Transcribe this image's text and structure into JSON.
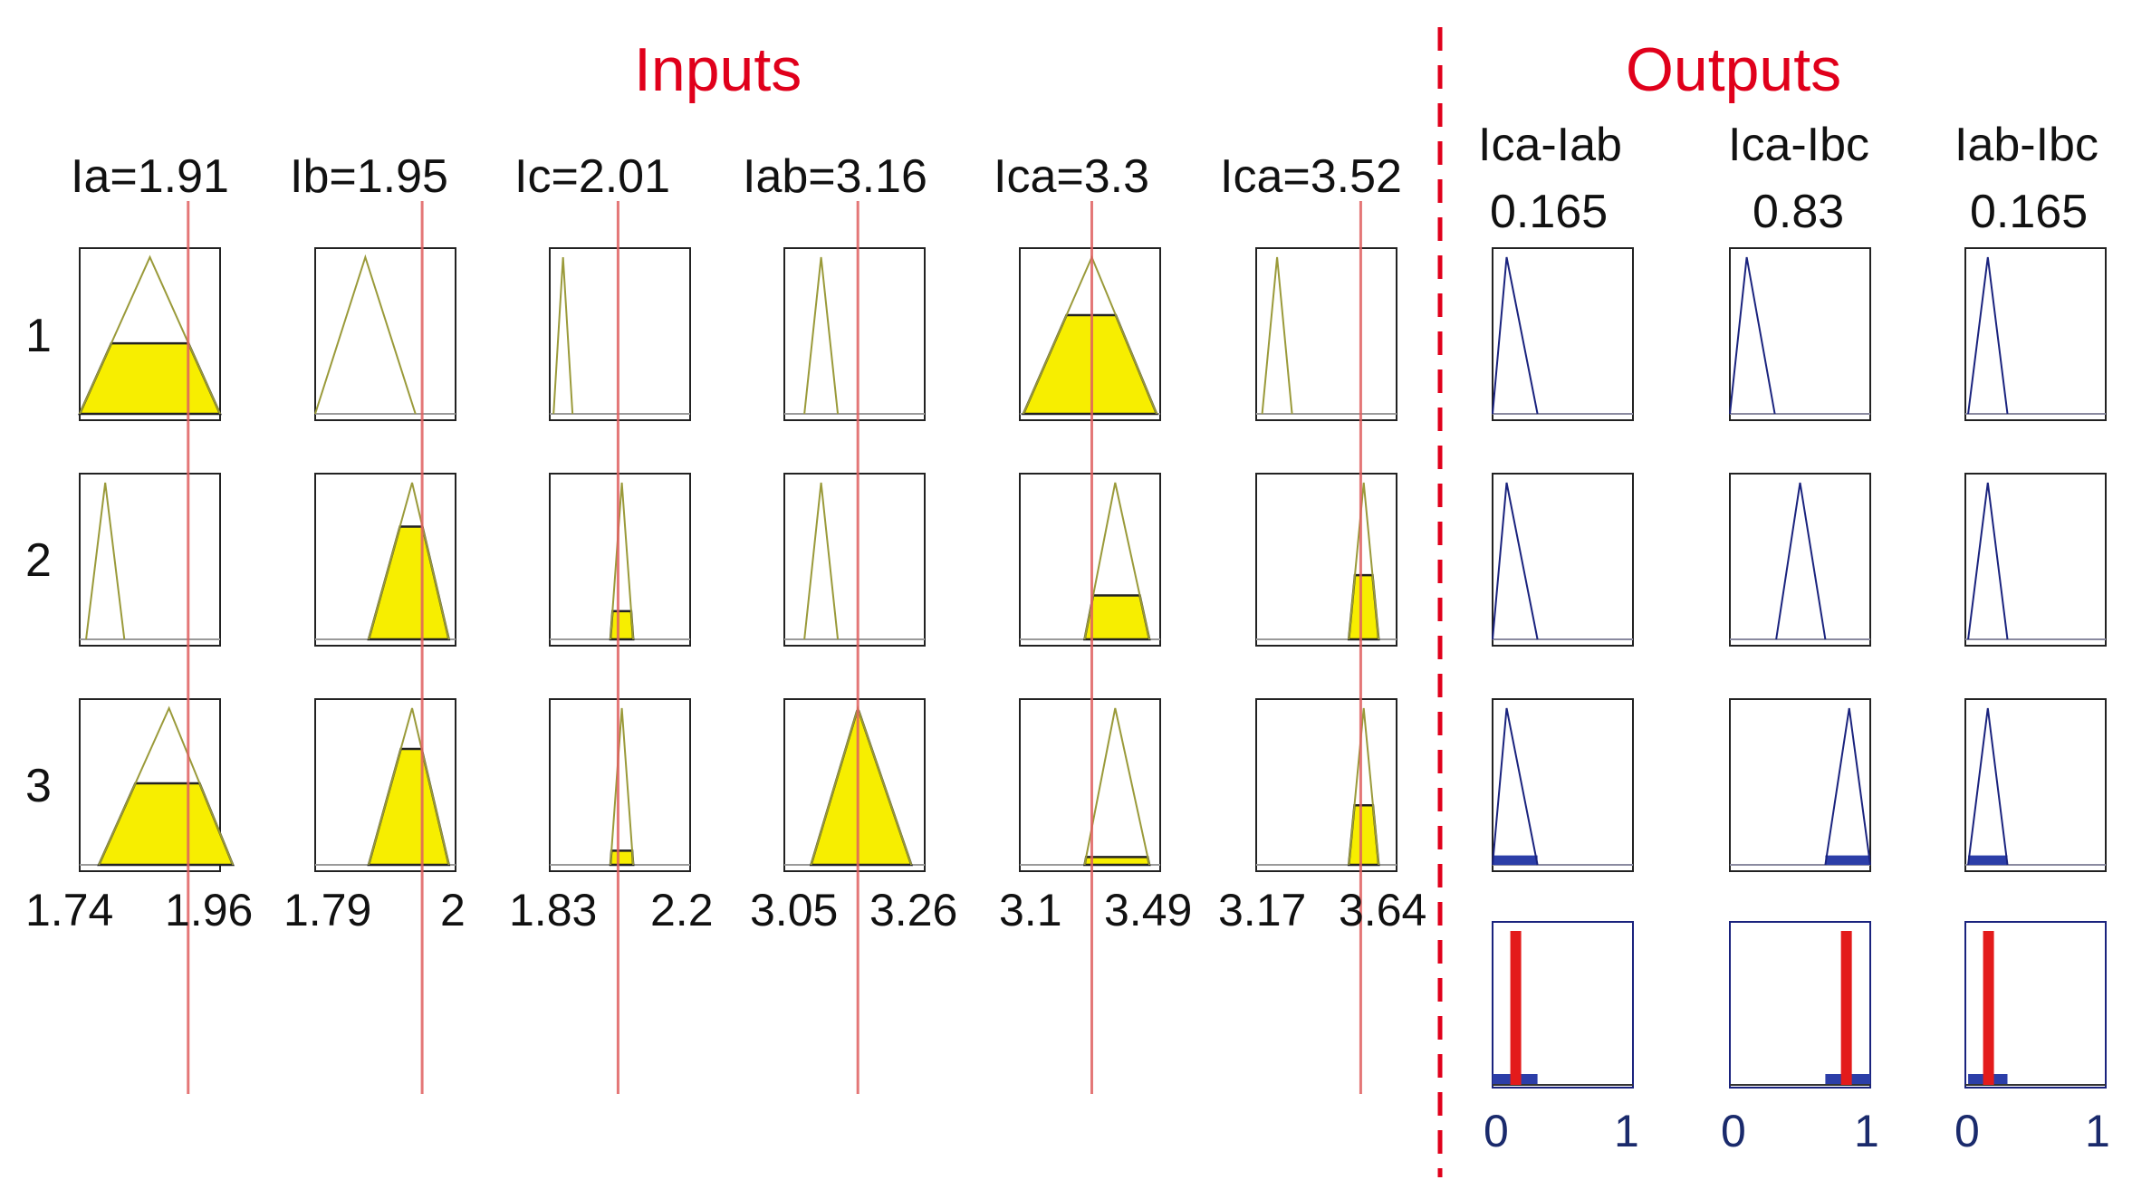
{
  "headings": {
    "inputs": "Inputs",
    "outputs": "Outputs"
  },
  "row_labels": [
    "1",
    "2",
    "3"
  ],
  "inputs": [
    {
      "label": "Ia=1.91",
      "range_min": "1.74",
      "range_max": "1.96",
      "value": 1.91,
      "min": 1.74,
      "max": 1.96,
      "mfs": [
        {
          "type": "trimf",
          "a": 1.74,
          "b": 1.85,
          "c": 1.96,
          "firing": 0.45
        },
        {
          "type": "trimf",
          "a": 1.75,
          "b": 1.78,
          "c": 1.81,
          "firing": 0
        },
        {
          "type": "trimf",
          "a": 1.77,
          "b": 1.88,
          "c": 1.98,
          "firing": 0.52
        }
      ]
    },
    {
      "label": "Ib=1.95",
      "range_min": "1.79",
      "range_max": "2",
      "value": 1.95,
      "min": 1.79,
      "max": 2,
      "mfs": [
        {
          "type": "trimf",
          "a": 1.79,
          "b": 1.865,
          "c": 1.94,
          "firing": 0
        },
        {
          "type": "trimf",
          "a": 1.87,
          "b": 1.935,
          "c": 1.99,
          "firing": 0.72
        },
        {
          "type": "trimf",
          "a": 1.87,
          "b": 1.935,
          "c": 1.99,
          "firing": 0.74
        }
      ]
    },
    {
      "label": "Ic=2.01",
      "range_min": "1.83",
      "range_max": "2.2",
      "value": 2.01,
      "min": 1.83,
      "max": 2.2,
      "mfs": [
        {
          "type": "trimf",
          "a": 1.84,
          "b": 1.865,
          "c": 1.89,
          "firing": 0
        },
        {
          "type": "trimf",
          "a": 1.99,
          "b": 2.02,
          "c": 2.05,
          "firing": 0.18
        },
        {
          "type": "trimf",
          "a": 1.99,
          "b": 2.02,
          "c": 2.05,
          "firing": 0.09
        }
      ]
    },
    {
      "label": "Iab=3.16",
      "range_min": "3.05",
      "range_max": "3.26",
      "value": 3.16,
      "min": 3.05,
      "max": 3.26,
      "mfs": [
        {
          "type": "trimf",
          "a": 3.08,
          "b": 3.105,
          "c": 3.13,
          "firing": 0
        },
        {
          "type": "trimf",
          "a": 3.08,
          "b": 3.105,
          "c": 3.13,
          "firing": 0
        },
        {
          "type": "trimf",
          "a": 3.09,
          "b": 3.16,
          "c": 3.24,
          "firing": 0.98
        }
      ]
    },
    {
      "label": "Ica=3.3",
      "range_min": "3.1",
      "range_max": "3.49",
      "value": 3.3,
      "min": 3.1,
      "max": 3.49,
      "mfs": [
        {
          "type": "trimf",
          "a": 3.11,
          "b": 3.3,
          "c": 3.48,
          "firing": 0.63
        },
        {
          "type": "trimf",
          "a": 3.28,
          "b": 3.365,
          "c": 3.46,
          "firing": 0.28
        },
        {
          "type": "trimf",
          "a": 3.28,
          "b": 3.365,
          "c": 3.46,
          "firing": 0.05
        }
      ]
    },
    {
      "label": "Ica=3.52",
      "range_min": "3.17",
      "range_max": "3.64",
      "value": 3.52,
      "min": 3.17,
      "max": 3.64,
      "mfs": [
        {
          "type": "trimf",
          "a": 3.19,
          "b": 3.24,
          "c": 3.29,
          "firing": 0
        },
        {
          "type": "trimf",
          "a": 3.48,
          "b": 3.53,
          "c": 3.58,
          "firing": 0.41
        },
        {
          "type": "trimf",
          "a": 3.48,
          "b": 3.53,
          "c": 3.58,
          "firing": 0.38
        }
      ]
    }
  ],
  "outputs": [
    {
      "name": "Ica-Iab",
      "value_label": "0.165",
      "value": 0.165,
      "range_min": "0",
      "range_max": "1",
      "mfs": [
        {
          "a": 0.0,
          "b": 0.1,
          "c": 0.32,
          "firing": 0
        },
        {
          "a": 0.0,
          "b": 0.1,
          "c": 0.32,
          "firing": 0
        },
        {
          "a": 0.0,
          "b": 0.1,
          "c": 0.32,
          "firing": 0.06
        }
      ]
    },
    {
      "name": "Ica-Ibc",
      "value_label": "0.83",
      "value": 0.83,
      "range_min": "0",
      "range_max": "1",
      "mfs": [
        {
          "a": 0.0,
          "b": 0.12,
          "c": 0.32,
          "firing": 0
        },
        {
          "a": 0.33,
          "b": 0.5,
          "c": 0.68,
          "firing": 0
        },
        {
          "a": 0.68,
          "b": 0.85,
          "c": 1.0,
          "firing": 0.06
        }
      ]
    },
    {
      "name": "Iab-Ibc",
      "value_label": "0.165",
      "value": 0.165,
      "range_min": "0",
      "range_max": "1",
      "mfs": [
        {
          "a": 0.02,
          "b": 0.16,
          "c": 0.3,
          "firing": 0
        },
        {
          "a": 0.02,
          "b": 0.16,
          "c": 0.3,
          "firing": 0
        },
        {
          "a": 0.02,
          "b": 0.16,
          "c": 0.3,
          "firing": 0.06
        }
      ]
    }
  ],
  "colors": {
    "section_title": "#e0001b",
    "divider": "#e0001b",
    "input_outline": "#9a9a3a",
    "input_fill": "#f7ee00",
    "input_cut": "#222222",
    "output_outline": "#1a237e",
    "output_fill": "#2c3ea8",
    "indicator": "#e06060",
    "defuzz_bar": "#e31b1b",
    "box_border": "#222222"
  }
}
